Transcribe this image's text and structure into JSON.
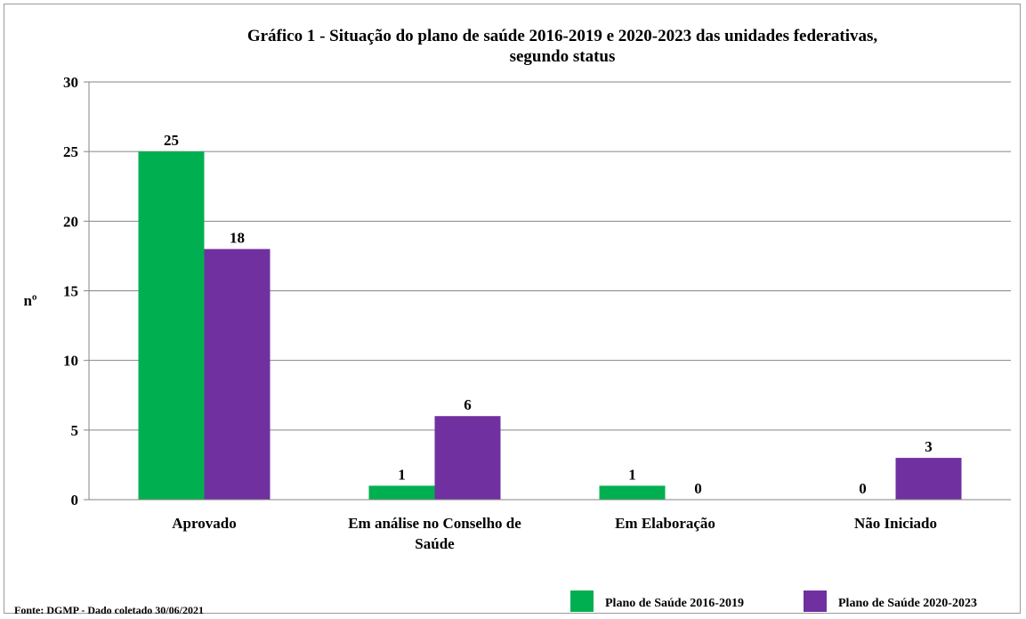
{
  "chart_data": {
    "type": "bar",
    "title": "Gráfico 1 - Situação do plano de saúde 2016-2019 e 2020-2023 das unidades federativas, segundo status",
    "title_lines": [
      "Gráfico 1 - Situação do plano de saúde 2016-2019 e 2020-2023 das unidades federativas,",
      "segundo status"
    ],
    "ylabel": "nº",
    "xlabel": "",
    "ylim": [
      0,
      30
    ],
    "yticks": [
      0,
      5,
      10,
      15,
      20,
      25,
      30
    ],
    "grid": true,
    "legend_position": "bottom-right",
    "categories": [
      [
        "Aprovado"
      ],
      [
        "Em análise no Conselho de",
        "Saúde"
      ],
      [
        "Em Elaboração"
      ],
      [
        "Não Iniciado"
      ]
    ],
    "series": [
      {
        "name": "Plano de Saúde 2016-2019",
        "color": "#00b050",
        "values": [
          25,
          1,
          1,
          0
        ]
      },
      {
        "name": "Plano de Saúde 2020-2023",
        "color": "#7030a0",
        "values": [
          18,
          6,
          0,
          3
        ]
      }
    ],
    "source_note": "Fonte: DGMP - Dado coletado 30/06/2021"
  }
}
